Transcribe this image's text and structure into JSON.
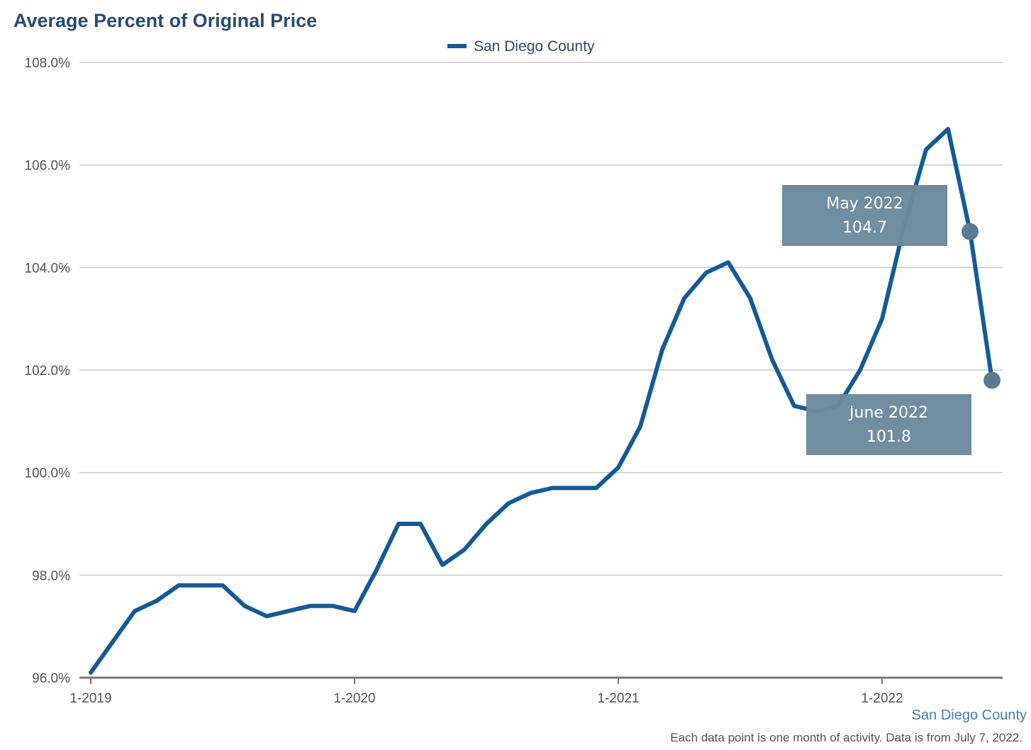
{
  "chart_data": {
    "type": "line",
    "title": "Average Percent of Original Price",
    "xlabel": "",
    "ylabel": "",
    "ylim": [
      96.0,
      108.0
    ],
    "yticks": [
      "96.0%",
      "98.0%",
      "100.0%",
      "102.0%",
      "104.0%",
      "106.0%",
      "108.0%"
    ],
    "xticks": [
      "1-2019",
      "1-2020",
      "1-2021",
      "1-2022"
    ],
    "legend": "top-center",
    "grid": true,
    "series": [
      {
        "name": "San Diego County",
        "color": "#155a96",
        "x": [
          "1-2019",
          "2-2019",
          "3-2019",
          "4-2019",
          "5-2019",
          "6-2019",
          "7-2019",
          "8-2019",
          "9-2019",
          "10-2019",
          "11-2019",
          "12-2019",
          "1-2020",
          "2-2020",
          "3-2020",
          "4-2020",
          "5-2020",
          "6-2020",
          "7-2020",
          "8-2020",
          "9-2020",
          "10-2020",
          "11-2020",
          "12-2020",
          "1-2021",
          "2-2021",
          "3-2021",
          "4-2021",
          "5-2021",
          "6-2021",
          "7-2021",
          "8-2021",
          "9-2021",
          "10-2021",
          "11-2021",
          "12-2021",
          "1-2022",
          "2-2022",
          "3-2022",
          "4-2022",
          "5-2022",
          "6-2022"
        ],
        "values": [
          96.1,
          96.7,
          97.3,
          97.5,
          97.8,
          97.8,
          97.8,
          97.4,
          97.2,
          97.3,
          97.4,
          97.4,
          97.3,
          98.1,
          99.0,
          99.0,
          98.2,
          98.5,
          99.0,
          99.4,
          99.6,
          99.7,
          99.7,
          99.7,
          100.1,
          100.9,
          102.4,
          103.4,
          103.9,
          104.1,
          103.4,
          102.2,
          101.3,
          101.2,
          101.3,
          102.0,
          103.0,
          104.8,
          106.3,
          106.7,
          104.7,
          101.8
        ]
      }
    ],
    "annotations": [
      {
        "line1": "May 2022",
        "line2": "104.7",
        "point_index": 40
      },
      {
        "line1": "June 2022",
        "line2": "101.8",
        "point_index": 41
      }
    ],
    "source": "San Diego County",
    "footnote": "Each data point is one month of activity. Data is from July 7, 2022."
  },
  "colors": {
    "line": "#155a96",
    "marker": "#5d7a8e",
    "callout_bg": "#6b8a9c",
    "grid": "#c8c8c8",
    "axis": "#777777"
  }
}
